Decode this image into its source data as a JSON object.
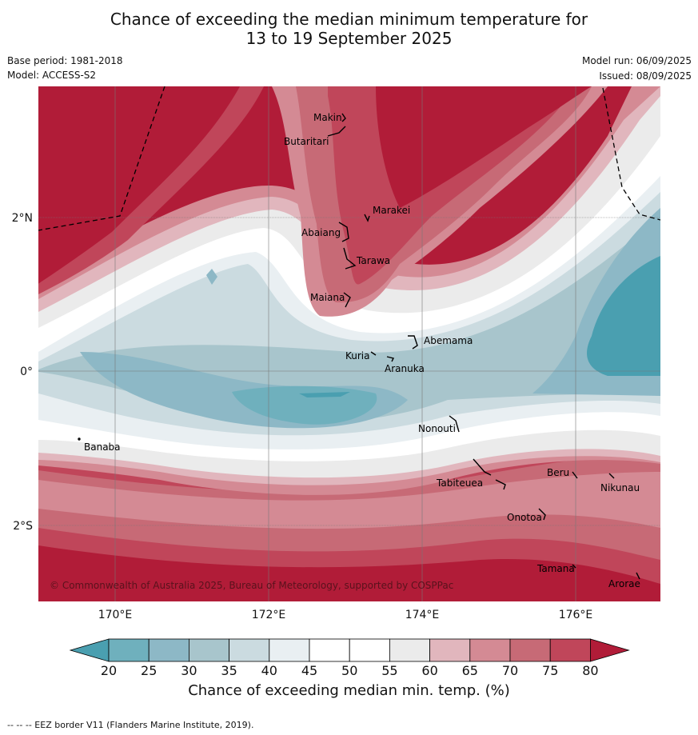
{
  "title_line1": "Chance of exceeding the median minimum temperature for",
  "title_line2": "13 to 19 September 2025",
  "base_period": "Base period: 1981-2018",
  "model": "Model: ACCESS-S2",
  "model_run": "Model run: 06/09/2025",
  "issued": "Issued: 08/09/2025",
  "copyright": "© Commonwealth of Australia 2025, Bureau of Meteorology, supported by COSPPac",
  "colorbar": {
    "label": "Chance of exceeding median min. temp. (%)",
    "ticks": [
      "20",
      "25",
      "30",
      "35",
      "40",
      "45",
      "50",
      "55",
      "60",
      "65",
      "70",
      "75",
      "80"
    ],
    "colors": [
      "#4a9fb0",
      "#6fb0bd",
      "#8db8c6",
      "#a8c5cc",
      "#cbdbe0",
      "#e9eff2",
      "#ffffff",
      "#ffffff",
      "#ebebeb",
      "#e1b6bd",
      "#d48a94",
      "#c76a76",
      "#c0465a",
      "#b11c38"
    ]
  },
  "axes": {
    "x_ticks": [
      "170°E",
      "172°E",
      "174°E",
      "176°E"
    ],
    "y_ticks": [
      "2°N",
      "0°",
      "2°S"
    ]
  },
  "places": [
    "Makin",
    "Butaritari",
    "Marakei",
    "Abaiang",
    "Tarawa",
    "Maiana",
    "Abemama",
    "Kuria",
    "Aranuka",
    "Nonouti",
    "Banaba",
    "Tabiteuea",
    "Beru",
    "Nikunau",
    "Onotoa",
    "Tamana",
    "Arorae"
  ],
  "footer": "--  --  -- EEZ border V11 (Flanders Marine Institute, 2019)."
}
